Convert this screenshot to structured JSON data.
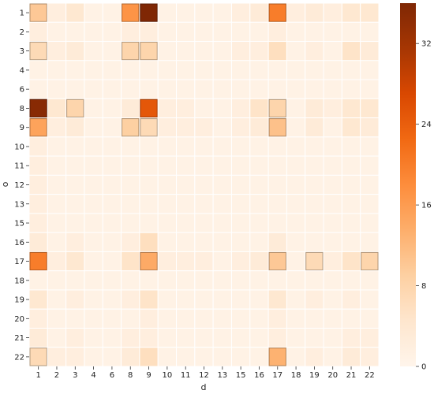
{
  "chart_data": {
    "type": "heatmap",
    "title": "",
    "xlabel": "d",
    "ylabel": "o",
    "x_categories": [
      "1",
      "2",
      "3",
      "4",
      "6",
      "8",
      "9",
      "10",
      "11",
      "12",
      "13",
      "15",
      "16",
      "17",
      "18",
      "19",
      "20",
      "21",
      "22"
    ],
    "y_categories": [
      "1",
      "2",
      "3",
      "4",
      "6",
      "8",
      "9",
      "10",
      "11",
      "12",
      "13",
      "15",
      "16",
      "17",
      "18",
      "19",
      "20",
      "21",
      "22"
    ],
    "values": [
      [
        10,
        2,
        4,
        1,
        1,
        17,
        36,
        1,
        1,
        1,
        1,
        2,
        3,
        20,
        2,
        3,
        2,
        4,
        4
      ],
      [
        2,
        1,
        1,
        1,
        1,
        2,
        2,
        1,
        1,
        1,
        1,
        1,
        1,
        2,
        1,
        1,
        1,
        1,
        1
      ],
      [
        7,
        2,
        3,
        1,
        1,
        8,
        8,
        1,
        1,
        1,
        1,
        2,
        2,
        6,
        1,
        2,
        1,
        5,
        3
      ],
      [
        1,
        1,
        1,
        1,
        1,
        1,
        1,
        1,
        1,
        1,
        1,
        1,
        1,
        1,
        1,
        1,
        1,
        1,
        1
      ],
      [
        1,
        1,
        1,
        1,
        1,
        1,
        1,
        1,
        1,
        1,
        1,
        1,
        1,
        1,
        1,
        1,
        1,
        1,
        1
      ],
      [
        35,
        4,
        8,
        1,
        1,
        3,
        25,
        2,
        2,
        1,
        1,
        2,
        5,
        8,
        1,
        3,
        2,
        4,
        4
      ],
      [
        15,
        2,
        3,
        1,
        1,
        9,
        7,
        2,
        2,
        2,
        1,
        2,
        3,
        11,
        1,
        3,
        1,
        4,
        3
      ],
      [
        2,
        1,
        1,
        1,
        1,
        1,
        1,
        1,
        1,
        1,
        1,
        1,
        1,
        1,
        1,
        1,
        1,
        1,
        1
      ],
      [
        2,
        1,
        1,
        1,
        1,
        1,
        1,
        1,
        1,
        1,
        1,
        1,
        1,
        1,
        1,
        1,
        1,
        1,
        1
      ],
      [
        2,
        1,
        1,
        1,
        1,
        1,
        1,
        1,
        1,
        1,
        1,
        1,
        1,
        1,
        1,
        1,
        1,
        1,
        1
      ],
      [
        2,
        1,
        1,
        1,
        1,
        1,
        1,
        1,
        1,
        1,
        1,
        1,
        1,
        1,
        1,
        1,
        1,
        1,
        1
      ],
      [
        2,
        1,
        1,
        1,
        1,
        1,
        1,
        1,
        1,
        1,
        1,
        1,
        1,
        1,
        1,
        1,
        1,
        1,
        1
      ],
      [
        3,
        1,
        2,
        1,
        1,
        2,
        6,
        1,
        1,
        1,
        1,
        1,
        1,
        3,
        1,
        1,
        1,
        1,
        1
      ],
      [
        20,
        2,
        4,
        1,
        1,
        5,
        14,
        2,
        2,
        2,
        1,
        2,
        3,
        10,
        1,
        7,
        2,
        5,
        8
      ],
      [
        1,
        1,
        1,
        1,
        1,
        1,
        1,
        1,
        1,
        1,
        1,
        1,
        1,
        1,
        1,
        1,
        1,
        1,
        1
      ],
      [
        4,
        1,
        2,
        1,
        1,
        2,
        5,
        1,
        1,
        1,
        1,
        1,
        1,
        4,
        1,
        2,
        1,
        2,
        1
      ],
      [
        2,
        1,
        1,
        1,
        1,
        1,
        2,
        1,
        1,
        1,
        1,
        1,
        1,
        2,
        1,
        1,
        1,
        1,
        1
      ],
      [
        3,
        1,
        2,
        1,
        1,
        2,
        2,
        1,
        1,
        1,
        1,
        1,
        1,
        2,
        1,
        1,
        1,
        2,
        2
      ],
      [
        7,
        2,
        2,
        1,
        1,
        3,
        6,
        1,
        1,
        1,
        1,
        1,
        1,
        13,
        1,
        2,
        1,
        3,
        2
      ]
    ],
    "highlighted_cells": [
      {
        "row": "1",
        "col": "9"
      },
      {
        "row": "1",
        "col": "17"
      },
      {
        "row": "8",
        "col": "1"
      },
      {
        "row": "8",
        "col": "9"
      },
      {
        "row": "17",
        "col": "1"
      },
      {
        "row": "22",
        "col": "17"
      }
    ],
    "colorbar": {
      "min": 0,
      "max": 36,
      "ticks": [
        0,
        8,
        16,
        24,
        32
      ],
      "colormap": "Oranges",
      "colors": [
        "#fff5eb",
        "#fee6ce",
        "#fdd0a2",
        "#fdae6b",
        "#fd8d3c",
        "#f16913",
        "#d94801",
        "#a63603",
        "#7f2704"
      ]
    },
    "grid_line_color": "#ffffff"
  }
}
